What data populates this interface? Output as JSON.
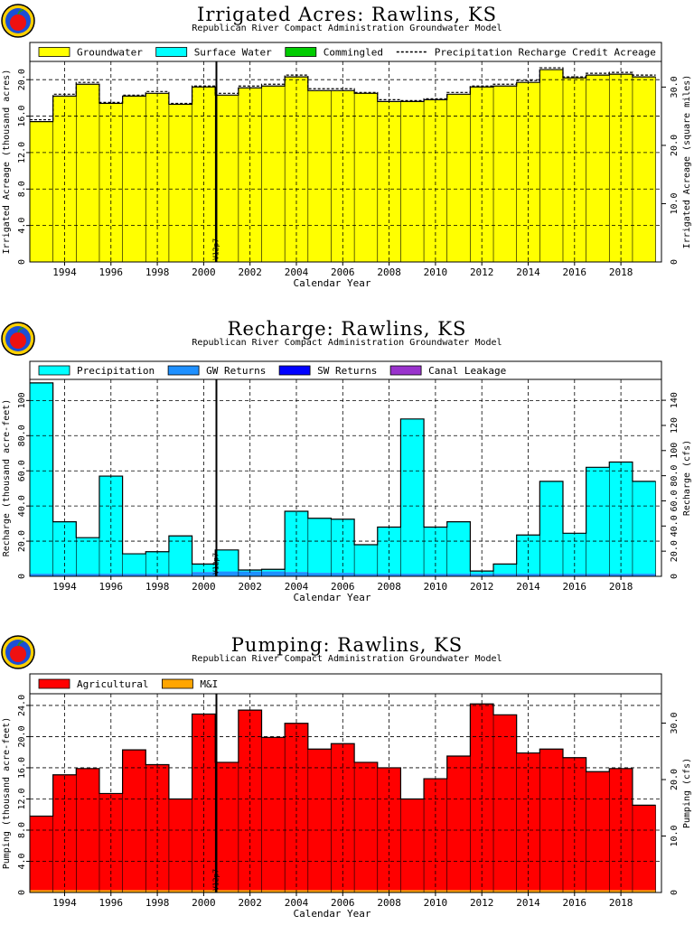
{
  "model_label": "Republican River Compact Administration Groundwater Model",
  "year_ticks": [
    "1994",
    "1996",
    "1998",
    "2000",
    "2002",
    "2004",
    "2006",
    "2008",
    "2010",
    "2012",
    "2014",
    "2016",
    "2018"
  ],
  "xlabel": "Calendar Year",
  "vline_label": "V12p7",
  "chart_data": [
    {
      "type": "area",
      "title": "Irrigated Acres: Rawlins, KS",
      "subtitle": "Republican River Compact Administration Groundwater Model",
      "xlabel": "Calendar Year",
      "ylabel": "Irrigated Acreage (thousand acres)",
      "y2label": "Irrigated Acreage (square miles)",
      "ylim": [
        0,
        22
      ],
      "yticks": [
        "4.0",
        "8.0",
        "12.0",
        "16.0",
        "20.0"
      ],
      "y2ticks": [
        "10.0",
        "20.0",
        "30.0"
      ],
      "grid": true,
      "legend_placement": "top",
      "legend": [
        {
          "name": "Groundwater",
          "color": "#ffff00",
          "kind": "box"
        },
        {
          "name": "Surface Water",
          "color": "#00ffff",
          "kind": "box"
        },
        {
          "name": "Commingled",
          "color": "#00cc00",
          "kind": "box"
        },
        {
          "name": "Precipitation Recharge Credit Acreage",
          "color": "#000000",
          "kind": "dash"
        }
      ],
      "x": [
        1993,
        1994,
        1995,
        1996,
        1997,
        1998,
        1999,
        2000,
        2001,
        2002,
        2003,
        2004,
        2005,
        2006,
        2007,
        2008,
        2009,
        2010,
        2011,
        2012,
        2013,
        2014,
        2015,
        2016,
        2017,
        2018,
        2019
      ],
      "series": [
        {
          "name": "Groundwater",
          "color": "#ffff00",
          "values": [
            15.4,
            18.2,
            19.5,
            17.4,
            18.2,
            18.5,
            17.3,
            19.2,
            18.3,
            19.1,
            19.3,
            20.3,
            18.8,
            18.8,
            18.5,
            17.6,
            17.6,
            17.8,
            18.4,
            19.2,
            19.3,
            19.7,
            21.1,
            20.2,
            20.5,
            20.6,
            20.3
          ]
        },
        {
          "name": "Surface Water",
          "color": "#00ffff",
          "values": [
            0,
            0,
            0,
            0,
            0,
            0,
            0,
            0,
            0,
            0,
            0,
            0,
            0,
            0,
            0,
            0,
            0,
            0,
            0,
            0,
            0,
            0,
            0,
            0,
            0,
            0,
            0
          ]
        },
        {
          "name": "Commingled",
          "color": "#00cc00",
          "values": [
            0,
            0,
            0,
            0,
            0,
            0,
            0,
            0,
            0,
            0,
            0,
            0,
            0,
            0,
            0,
            0,
            0,
            0,
            0,
            0,
            0,
            0,
            0,
            0,
            0,
            0,
            0
          ]
        }
      ],
      "recharge_credit_line": [
        15.6,
        18.4,
        19.7,
        17.5,
        18.3,
        18.7,
        17.4,
        19.3,
        18.5,
        19.3,
        19.5,
        20.5,
        19.0,
        19.0,
        18.6,
        17.8,
        17.7,
        17.9,
        18.6,
        19.3,
        19.5,
        19.9,
        21.3,
        20.3,
        20.7,
        20.8,
        20.5
      ]
    },
    {
      "type": "area",
      "title": "Recharge: Rawlins, KS",
      "subtitle": "Republican River Compact Administration Groundwater Model",
      "xlabel": "Calendar Year",
      "ylabel": "Recharge (thousand acre-feet)",
      "y2label": "Recharge (cfs)",
      "ylim": [
        0,
        112
      ],
      "yticks": [
        "20.0",
        "40.0",
        "60.0",
        "80.0",
        "100"
      ],
      "y2ticks": [
        "20.0",
        "40.0",
        "60.0",
        "80.0",
        "100",
        "120",
        "140"
      ],
      "grid": true,
      "legend_placement": "top",
      "legend": [
        {
          "name": "Precipitation",
          "color": "#00ffff",
          "kind": "box"
        },
        {
          "name": "GW Returns",
          "color": "#1e90ff",
          "kind": "box"
        },
        {
          "name": "SW Returns",
          "color": "#0000ff",
          "kind": "box"
        },
        {
          "name": "Canal Leakage",
          "color": "#9932cc",
          "kind": "box"
        }
      ],
      "x": [
        1993,
        1994,
        1995,
        1996,
        1997,
        1998,
        1999,
        2000,
        2001,
        2002,
        2003,
        2004,
        2005,
        2006,
        2007,
        2008,
        2009,
        2010,
        2011,
        2012,
        2013,
        2014,
        2015,
        2016,
        2017,
        2018,
        2019
      ],
      "series": [
        {
          "name": "GW Returns",
          "color": "#1e90ff",
          "values": [
            1.5,
            1.5,
            1.5,
            1.5,
            1.5,
            1.5,
            1.5,
            2.5,
            2.8,
            2.8,
            2.8,
            2.5,
            2.0,
            2.0,
            1.5,
            1.5,
            1.5,
            1.5,
            1.5,
            1.5,
            1.5,
            1.5,
            1.5,
            1.5,
            1.5,
            1.5,
            1.5
          ]
        },
        {
          "name": "SW Returns",
          "color": "#0000ff",
          "values": [
            0,
            0,
            0,
            0,
            0,
            0,
            0,
            0,
            0,
            0,
            0,
            0,
            0,
            0,
            0,
            0,
            0,
            0,
            0,
            0,
            0,
            0,
            0,
            0,
            0,
            0,
            0
          ]
        },
        {
          "name": "Canal Leakage",
          "color": "#9932cc",
          "values": [
            0,
            0,
            0,
            0,
            0,
            0,
            0,
            0,
            0,
            0,
            0,
            0,
            0,
            0,
            0,
            0,
            0,
            0,
            0,
            0,
            0,
            0,
            0,
            0,
            0,
            0,
            0
          ]
        },
        {
          "name": "Precipitation",
          "color": "#00ffff",
          "values": [
            108.5,
            29.5,
            20.5,
            55.5,
            11.3,
            12.5,
            21.5,
            4.5,
            12.2,
            0.8,
            1.2,
            34.5,
            31.0,
            30.5,
            16.5,
            26.5,
            88.0,
            26.5,
            29.5,
            1.5,
            5.5,
            22.0,
            52.5,
            23.0,
            60.5,
            63.5,
            52.5
          ]
        }
      ],
      "totals": [
        110,
        31,
        22,
        57,
        12.8,
        14,
        23,
        7,
        15,
        3.6,
        4,
        37,
        33,
        32.5,
        18,
        28,
        89.5,
        28,
        31,
        3,
        7,
        23.5,
        54,
        24.5,
        62,
        65,
        54
      ]
    },
    {
      "type": "area",
      "title": "Pumping: Rawlins, KS",
      "subtitle": "Republican River Compact Administration Groundwater Model",
      "xlabel": "Calendar Year",
      "ylabel": "Pumping (thousand acre-feet)",
      "y2label": "Pumping (cfs)",
      "ylim": [
        0,
        25.5
      ],
      "yticks": [
        "4.0",
        "8.0",
        "12.0",
        "16.0",
        "20.0",
        "24.0"
      ],
      "y2ticks": [
        "10.0",
        "20.0",
        "30.0"
      ],
      "grid": true,
      "legend_placement": "top",
      "legend": [
        {
          "name": "Agricultural",
          "color": "#ff0000",
          "kind": "box"
        },
        {
          "name": "M&I",
          "color": "#ffa500",
          "kind": "box"
        }
      ],
      "x": [
        1993,
        1994,
        1995,
        1996,
        1997,
        1998,
        1999,
        2000,
        2001,
        2002,
        2003,
        2004,
        2005,
        2006,
        2007,
        2008,
        2009,
        2010,
        2011,
        2012,
        2013,
        2014,
        2015,
        2016,
        2017,
        2018,
        2019
      ],
      "series": [
        {
          "name": "M&I",
          "color": "#ffa500",
          "values": [
            0.3,
            0.3,
            0.3,
            0.3,
            0.3,
            0.3,
            0.3,
            0.3,
            0.3,
            0.3,
            0.3,
            0.3,
            0.3,
            0.3,
            0.3,
            0.3,
            0.3,
            0.3,
            0.3,
            0.3,
            0.3,
            0.3,
            0.3,
            0.3,
            0.3,
            0.3,
            0.3
          ]
        },
        {
          "name": "Agricultural",
          "color": "#ff0000",
          "values": [
            9.5,
            14.8,
            15.6,
            12.4,
            18.0,
            16.1,
            11.7,
            22.6,
            16.4,
            23.1,
            19.6,
            21.4,
            18.1,
            18.8,
            16.4,
            15.7,
            11.7,
            14.3,
            17.2,
            23.9,
            22.5,
            17.6,
            18.1,
            17.0,
            15.2,
            15.6,
            10.9
          ]
        }
      ]
    }
  ]
}
